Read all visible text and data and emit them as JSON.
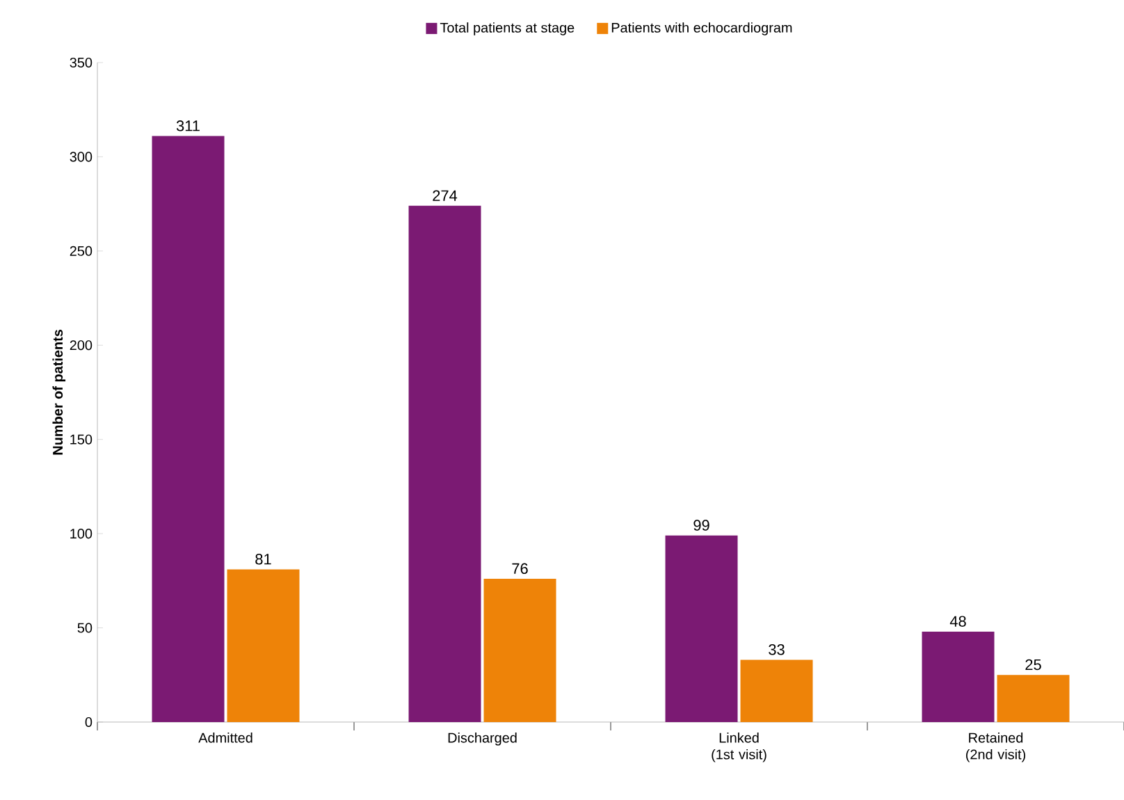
{
  "chart_data": {
    "type": "bar",
    "ylabel": "**Number of patients**",
    "categories": [
      "Admitted",
      "Discharged",
      "Linked (1st visit)",
      "Retained (2nd  visit)"
    ],
    "series": [
      {
        "name": "Total patients at stage",
        "color": "#7b1a73",
        "values": [
          311,
          274,
          99,
          48
        ]
      },
      {
        "name": "Patients with echocardiogram",
        "color": "#ee8308",
        "values": [
          81,
          76,
          33,
          25
        ]
      }
    ],
    "ylim": [
      0,
      350
    ],
    "yticks": [
      0,
      50,
      100,
      150,
      200,
      250,
      300,
      350
    ],
    "data_labels": true,
    "legend": "top",
    "grid": false
  }
}
